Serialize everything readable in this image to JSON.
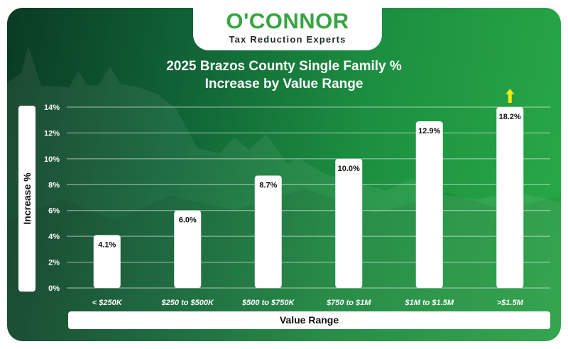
{
  "logo": {
    "name": "O'CONNOR",
    "tagline": "Tax Reduction Experts"
  },
  "colors": {
    "bar": "#ffffff",
    "arrow": "#f2ea0e",
    "logo_green": "#35a541"
  },
  "chart_data": {
    "type": "bar",
    "title_lines": [
      "2025 Brazos County Single Family %",
      "Increase by Value Range"
    ],
    "xlabel": "Value Range",
    "ylabel": "Increase %",
    "categories": [
      "< $250K",
      "$250 to $500K",
      "$500 to $750K",
      "$750 to $1M",
      "$1M to $1.5M",
      ">$1.5M"
    ],
    "values": [
      4.1,
      6.0,
      8.7,
      10.0,
      12.9,
      18.2
    ],
    "value_labels": [
      "4.1%",
      "6.0%",
      "8.7%",
      "10.0%",
      "12.9%",
      "18.2%"
    ],
    "yticks": [
      "0%",
      "2%",
      "4%",
      "6%",
      "8%",
      "10%",
      "12%",
      "14%"
    ],
    "ylim": [
      0,
      14
    ],
    "grid": true,
    "overflow_arrow_on": ">$1.5M"
  }
}
